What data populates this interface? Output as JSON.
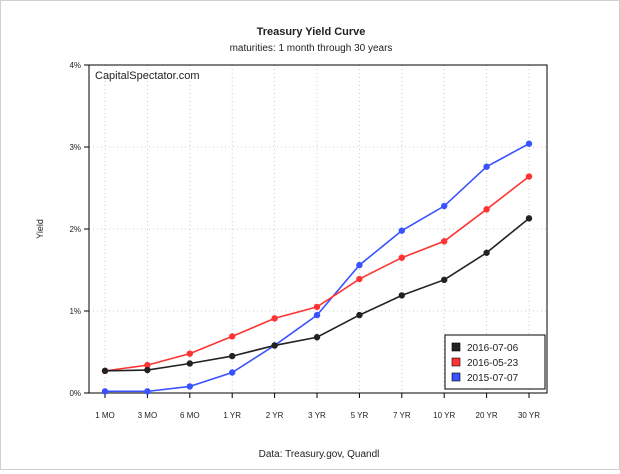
{
  "chart_data": {
    "type": "line",
    "title": "Treasury Yield Curve",
    "subtitle": "maturities: 1 month through 30 years",
    "watermark": "CapitalSpectator.com",
    "xlabel": "",
    "ylabel": "Yield",
    "source": "Data: Treasury.gov, Quandl",
    "categories": [
      "1 MO",
      "3 MO",
      "6 MO",
      "1 YR",
      "2 YR",
      "3 YR",
      "5 YR",
      "7 YR",
      "10 YR",
      "20 YR",
      "30 YR"
    ],
    "yticks": [
      0,
      1,
      2,
      3,
      4
    ],
    "ytick_labels": [
      "0%",
      "1%",
      "2%",
      "3%",
      "4%"
    ],
    "ylim": [
      0,
      4
    ],
    "grid": true,
    "legend_position": "bottom-right",
    "series": [
      {
        "name": "2016-07-06",
        "color": "#222222",
        "values": [
          0.27,
          0.28,
          0.36,
          0.45,
          0.58,
          0.68,
          0.95,
          1.19,
          1.38,
          1.71,
          2.13
        ]
      },
      {
        "name": "2016-05-23",
        "color": "#ff3333",
        "values": [
          0.27,
          0.34,
          0.48,
          0.69,
          0.91,
          1.05,
          1.39,
          1.65,
          1.85,
          2.24,
          2.64
        ]
      },
      {
        "name": "2015-07-07",
        "color": "#3a52ff",
        "values": [
          0.02,
          0.02,
          0.08,
          0.25,
          0.58,
          0.95,
          1.56,
          1.98,
          2.28,
          2.76,
          3.04
        ]
      }
    ]
  }
}
